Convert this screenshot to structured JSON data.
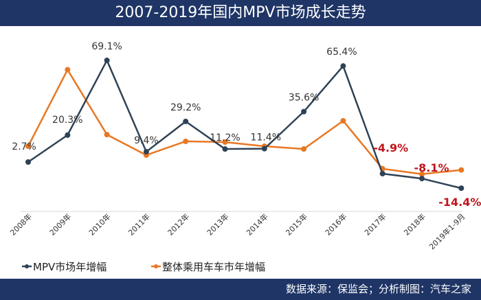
{
  "title": "2007-2019年国内MPV市场成长走势",
  "footer": "数据来源：保监会；分析制图：汽车之家",
  "colors": {
    "header_bg": "#1f3566",
    "mpv": "#2e4256",
    "passenger": "#e87722",
    "negative_label": "#c0141c",
    "label": "#333333"
  },
  "chart_data": {
    "type": "line",
    "categories": [
      "2008年",
      "2009年",
      "2010年",
      "2011年",
      "2012年",
      "2013年",
      "2014年",
      "2015年",
      "2016年",
      "2017年",
      "2018年",
      "2019年1-9月"
    ],
    "ylim": [
      -20,
      75
    ],
    "grid": false,
    "legend_position": "bottom-left",
    "series": [
      {
        "name": "MPV市场年增幅",
        "color": "#2e4256",
        "values": [
          2.7,
          20.3,
          69.1,
          9.4,
          29.2,
          11.2,
          11.4,
          35.6,
          65.4,
          -4.9,
          -8.1,
          -14.4
        ],
        "labels": [
          "2.7%",
          "20.3%",
          "69.1%",
          "9.4%",
          "29.2%",
          "11.2%",
          "11.4%",
          "35.6%",
          "65.4%",
          "-4.9%",
          "-8.1%",
          "-14.4%"
        ]
      },
      {
        "name": "整体乘用车车市年增幅",
        "color": "#e87722",
        "values": [
          13,
          63,
          20.6,
          7.2,
          16.2,
          15.7,
          13,
          11.2,
          29.6,
          -1.7,
          -5.2,
          -2.5
        ]
      }
    ]
  }
}
